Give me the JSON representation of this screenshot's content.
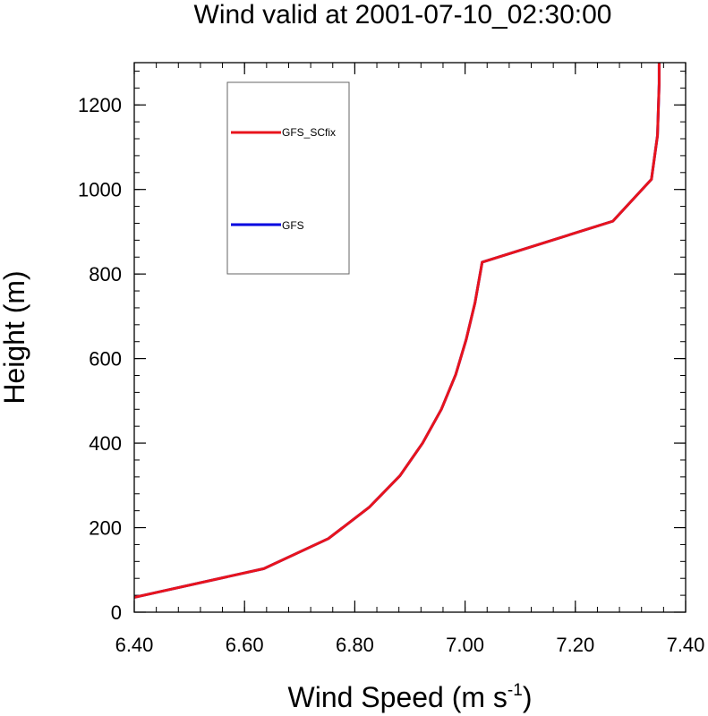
{
  "chart_data": {
    "type": "line",
    "title": "Wind valid at 2001-07-10_02:30:00",
    "xlabel_main": "Wind Speed (m s",
    "xlabel_sup": "-1",
    "xlabel_close": ")",
    "ylabel": "Height (m)",
    "xlim": [
      6.4,
      7.4
    ],
    "ylim": [
      0,
      1300
    ],
    "xticks": [
      "6.40",
      "6.60",
      "6.80",
      "7.00",
      "7.20",
      "7.40"
    ],
    "yticks": [
      "0",
      "200",
      "400",
      "600",
      "800",
      "1000",
      "1200"
    ],
    "legend_placement": "top-left",
    "series": [
      {
        "name": "GFS_SCfix",
        "color": "#e8141c",
        "x": [
          6.4,
          6.635,
          6.752,
          6.826,
          6.882,
          6.923,
          6.957,
          6.983,
          7.002,
          7.018,
          7.031,
          7.268,
          7.338,
          7.349,
          7.352,
          7.352
        ],
        "y": [
          35,
          103,
          174,
          248,
          323,
          400,
          480,
          562,
          645,
          732,
          828,
          925,
          1024,
          1128,
          1250,
          1300
        ]
      },
      {
        "name": "GFS",
        "color": "#0000e0",
        "x": [
          6.4,
          6.635,
          6.752,
          6.826,
          6.882,
          6.923,
          6.957,
          6.983,
          7.002,
          7.018,
          7.031,
          7.268,
          7.338,
          7.349,
          7.352,
          7.352
        ],
        "y": [
          35,
          103,
          174,
          248,
          323,
          400,
          480,
          562,
          645,
          732,
          828,
          925,
          1024,
          1128,
          1250,
          1300
        ]
      }
    ]
  }
}
